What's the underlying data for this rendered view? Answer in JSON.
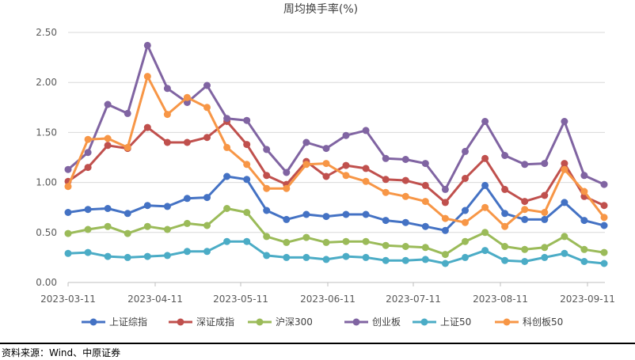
{
  "chart_data": {
    "type": "line",
    "title": "周均换手率(%)",
    "xlabel": "",
    "ylabel": "",
    "ylim": [
      0,
      2.5
    ],
    "yticks": [
      "0.00",
      "0.50",
      "1.00",
      "1.50",
      "2.00",
      "2.50"
    ],
    "xticks": [
      "2023-03-11",
      "2023-04-11",
      "2023-05-11",
      "2023-06-11",
      "2023-07-11",
      "2023-08-11",
      "2023-09-11"
    ],
    "grid": true,
    "legend_position": "bottom",
    "series": [
      {
        "name": "上证综指",
        "color": "#4472C4",
        "values": [
          0.7,
          0.73,
          0.74,
          0.69,
          0.77,
          0.76,
          0.84,
          0.85,
          1.06,
          1.03,
          0.72,
          0.63,
          0.68,
          0.66,
          0.68,
          0.68,
          0.62,
          0.6,
          0.56,
          0.52,
          0.72,
          0.97,
          0.69,
          0.63,
          0.63,
          0.8,
          0.62,
          0.57
        ]
      },
      {
        "name": "深证成指",
        "color": "#C0504D",
        "values": [
          1.01,
          1.15,
          1.37,
          1.34,
          1.55,
          1.4,
          1.4,
          1.45,
          1.61,
          1.38,
          1.07,
          0.98,
          1.21,
          1.06,
          1.17,
          1.14,
          1.03,
          1.02,
          0.97,
          0.8,
          1.04,
          1.24,
          0.93,
          0.81,
          0.87,
          1.19,
          0.86,
          0.77
        ]
      },
      {
        "name": "沪深300",
        "color": "#9BBB59",
        "values": [
          0.49,
          0.53,
          0.56,
          0.49,
          0.56,
          0.53,
          0.59,
          0.57,
          0.74,
          0.7,
          0.46,
          0.4,
          0.45,
          0.4,
          0.41,
          0.41,
          0.37,
          0.36,
          0.35,
          0.28,
          0.41,
          0.5,
          0.36,
          0.33,
          0.35,
          0.46,
          0.33,
          0.3
        ]
      },
      {
        "name": "创业板",
        "color": "#8064A2",
        "values": [
          1.13,
          1.3,
          1.78,
          1.69,
          2.37,
          1.94,
          1.8,
          1.97,
          1.64,
          1.62,
          1.33,
          1.1,
          1.4,
          1.34,
          1.47,
          1.52,
          1.24,
          1.23,
          1.19,
          0.93,
          1.31,
          1.61,
          1.27,
          1.18,
          1.19,
          1.61,
          1.07,
          0.98
        ]
      },
      {
        "name": "上证50",
        "color": "#4BACC6",
        "values": [
          0.29,
          0.3,
          0.26,
          0.25,
          0.26,
          0.27,
          0.31,
          0.31,
          0.41,
          0.41,
          0.27,
          0.25,
          0.25,
          0.23,
          0.26,
          0.25,
          0.22,
          0.22,
          0.23,
          0.19,
          0.25,
          0.32,
          0.22,
          0.21,
          0.25,
          0.29,
          0.21,
          0.19
        ]
      },
      {
        "name": "科创板50",
        "color": "#F79646",
        "values": [
          0.96,
          1.43,
          1.44,
          1.35,
          2.06,
          1.68,
          1.85,
          1.75,
          1.35,
          1.18,
          0.94,
          0.94,
          1.18,
          1.19,
          1.07,
          1.01,
          0.9,
          0.86,
          0.81,
          0.64,
          0.6,
          0.75,
          0.56,
          0.73,
          0.7,
          1.13,
          0.91,
          0.65
        ]
      }
    ]
  },
  "source": "资料来源：Wind、中原证券"
}
